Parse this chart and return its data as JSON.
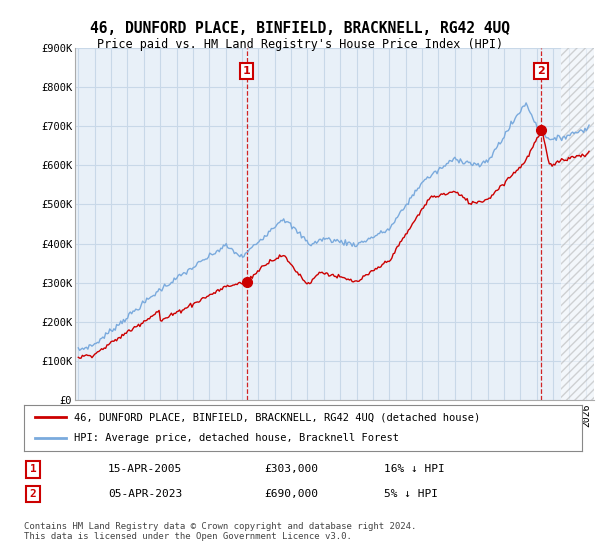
{
  "title": "46, DUNFORD PLACE, BINFIELD, BRACKNELL, RG42 4UQ",
  "subtitle": "Price paid vs. HM Land Registry's House Price Index (HPI)",
  "footer": "Contains HM Land Registry data © Crown copyright and database right 2024.\nThis data is licensed under the Open Government Licence v3.0.",
  "legend_line1": "46, DUNFORD PLACE, BINFIELD, BRACKNELL, RG42 4UQ (detached house)",
  "legend_line2": "HPI: Average price, detached house, Bracknell Forest",
  "sale1_label": "1",
  "sale1_date": "15-APR-2005",
  "sale1_price": "£303,000",
  "sale1_hpi": "16% ↓ HPI",
  "sale2_label": "2",
  "sale2_date": "05-APR-2023",
  "sale2_price": "£690,000",
  "sale2_hpi": "5% ↓ HPI",
  "hpi_color": "#7aaadd",
  "price_color": "#cc0000",
  "sale_marker_color": "#cc0000",
  "grid_color": "#c8d8e8",
  "chart_bg": "#e8f0f8",
  "background_color": "#ffffff",
  "ylim": [
    0,
    900000
  ],
  "yticks": [
    0,
    100000,
    200000,
    300000,
    400000,
    500000,
    600000,
    700000,
    800000,
    900000
  ],
  "ytick_labels": [
    "£0",
    "£100K",
    "£200K",
    "£300K",
    "£400K",
    "£500K",
    "£600K",
    "£700K",
    "£800K",
    "£900K"
  ],
  "xlim_start": 1994.8,
  "xlim_end": 2026.5,
  "sale1_year": 2005.29,
  "sale1_value": 303000,
  "sale2_year": 2023.27,
  "sale2_value": 690000,
  "hatch_start": 2024.5
}
